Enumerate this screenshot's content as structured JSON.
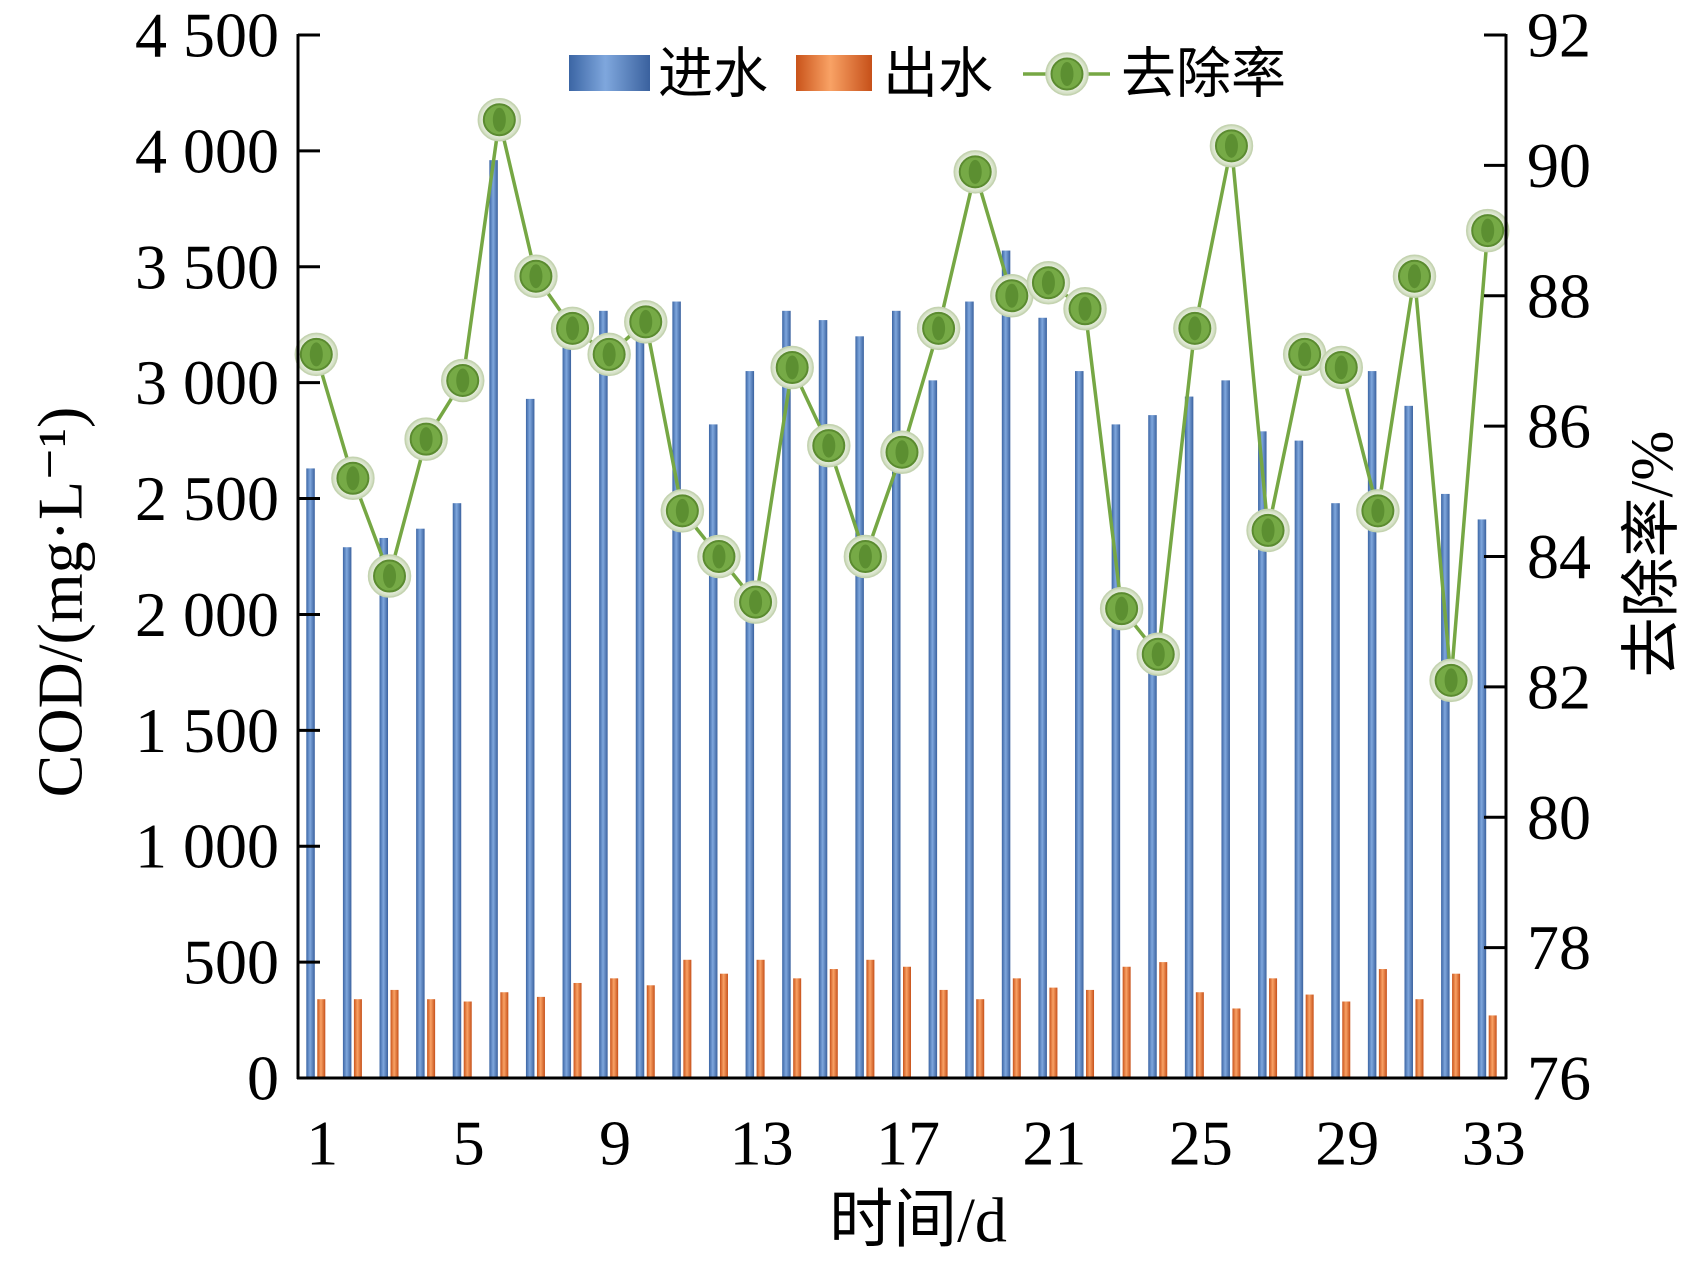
{
  "chart_data": {
    "type": "bar",
    "categories": [
      1,
      2,
      3,
      4,
      5,
      6,
      7,
      8,
      9,
      10,
      11,
      12,
      13,
      14,
      15,
      16,
      17,
      18,
      19,
      20,
      21,
      22,
      23,
      24,
      25,
      26,
      27,
      28,
      29,
      30,
      31,
      32,
      33
    ],
    "x_ticks": [
      1,
      5,
      9,
      13,
      17,
      21,
      25,
      29,
      33
    ],
    "x_tick_labels": [
      "1",
      "5",
      "9",
      "13",
      "17",
      "21",
      "25",
      "29",
      "33"
    ],
    "xlabel": "时间/d",
    "ylabel": "COD/(mg·L⁻¹)",
    "y2label": "去除率/%",
    "ylim": [
      0,
      4500
    ],
    "y2lim": [
      76,
      92
    ],
    "y_ticks": [
      0,
      500,
      1000,
      1500,
      2000,
      2500,
      3000,
      3500,
      4000,
      4500
    ],
    "y_tick_labels": [
      "0",
      "500",
      "1 000",
      "1 500",
      "2 000",
      "2 500",
      "3 000",
      "3 500",
      "4 000",
      "4 500"
    ],
    "y2_ticks": [
      76,
      78,
      80,
      82,
      84,
      86,
      88,
      90,
      92
    ],
    "y2_tick_labels": [
      "76",
      "78",
      "80",
      "82",
      "84",
      "86",
      "88",
      "90",
      "92"
    ],
    "grid": false,
    "legend": "top",
    "series": [
      {
        "name": "进水",
        "type": "bar",
        "y_axis": "left",
        "color": "#4f7fc1",
        "values": [
          2630,
          2290,
          2330,
          2370,
          2480,
          3960,
          2930,
          3280,
          3310,
          3230,
          3350,
          2820,
          3050,
          3310,
          3270,
          3200,
          3310,
          3010,
          3350,
          3570,
          3280,
          3050,
          2820,
          2860,
          2940,
          3010,
          2790,
          2750,
          2480,
          3050,
          2900,
          2520,
          2410
        ]
      },
      {
        "name": "出水",
        "type": "bar",
        "y_axis": "left",
        "color": "#e8742c",
        "values": [
          340,
          340,
          380,
          340,
          330,
          370,
          350,
          410,
          430,
          400,
          510,
          450,
          510,
          430,
          470,
          510,
          480,
          380,
          340,
          430,
          390,
          380,
          480,
          500,
          370,
          300,
          430,
          360,
          330,
          470,
          340,
          450,
          270
        ]
      },
      {
        "name": "去除率",
        "type": "line",
        "y_axis": "right",
        "color": "#76a744",
        "values": [
          87.1,
          85.2,
          83.7,
          85.8,
          86.7,
          90.7,
          88.3,
          87.5,
          87.1,
          87.6,
          84.7,
          84.0,
          83.3,
          86.9,
          85.7,
          84.0,
          85.6,
          87.5,
          89.9,
          88.0,
          88.2,
          87.8,
          83.2,
          82.5,
          87.5,
          90.3,
          84.4,
          87.1,
          86.9,
          84.7,
          88.3,
          82.1,
          89.0
        ]
      }
    ]
  }
}
